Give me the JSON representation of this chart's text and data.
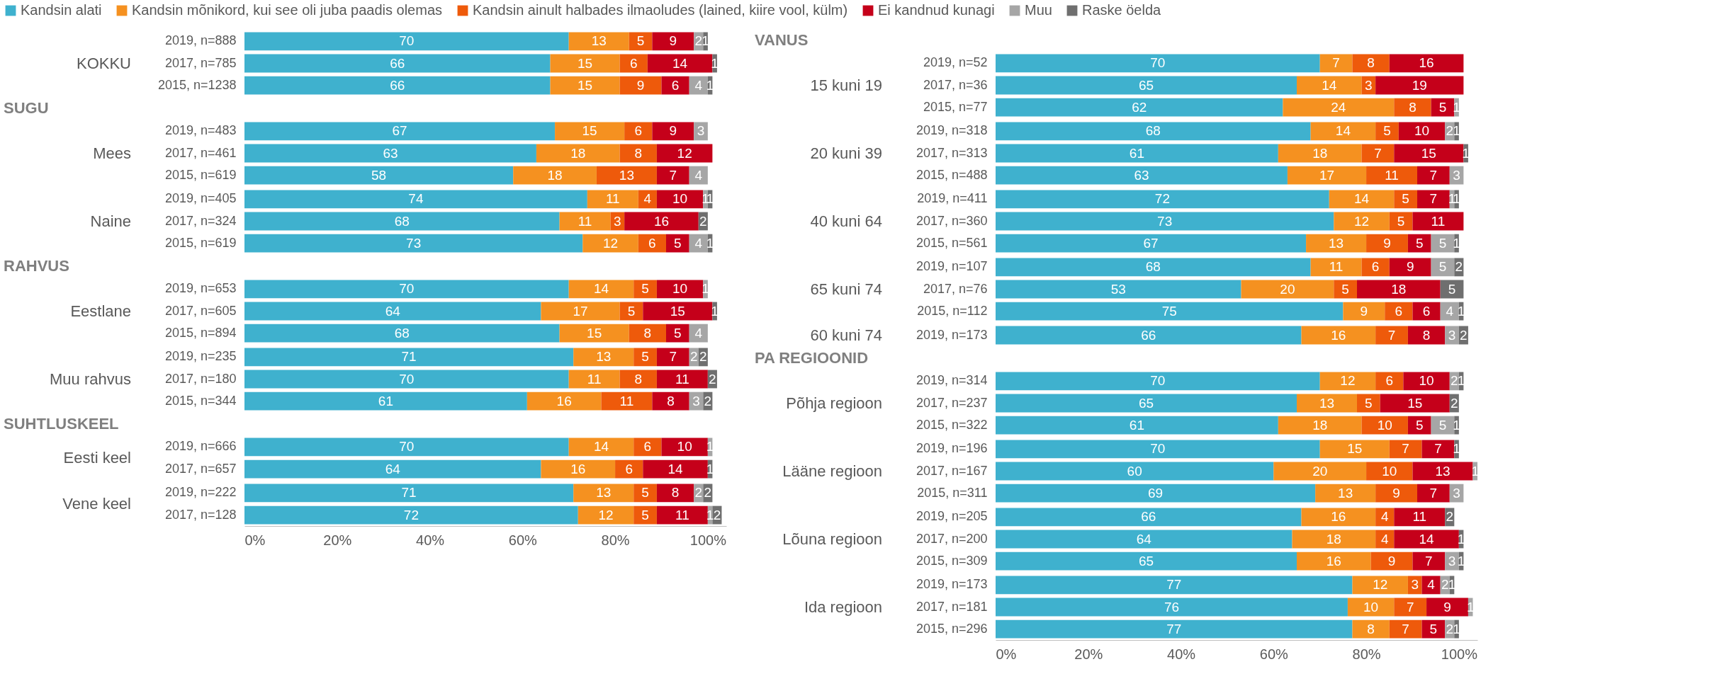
{
  "chart_data": [
    {
      "type": "bar",
      "orientation": "horizontal",
      "stacked": true,
      "data_labels": true,
      "legend": "top",
      "tick_labels": "y",
      "title": "KOKKU",
      "categories": [
        "2019, n=888",
        "2017, n=785",
        "2015, n=1238"
      ],
      "series": [
        {
          "name": "Kandsin alati",
          "color": "#3fb1ce",
          "values": [
            70,
            66,
            66
          ]
        },
        {
          "name": "Kandsin mõnikord, kui see oli juba paadis olemas",
          "color": "#f59120",
          "values": [
            13,
            15,
            15
          ]
        },
        {
          "name": "Kandsin ainult halbades ilmaoludes (lained, kiire vool, külm)",
          "color": "#ee5a0b",
          "values": [
            5,
            6,
            9
          ]
        },
        {
          "name": "Ei kandnud kunagi",
          "color": "#c5001a",
          "values": [
            9,
            14,
            6
          ]
        },
        {
          "name": "Muu",
          "color": "#a6a6a6",
          "values": [
            2,
            null,
            4
          ]
        },
        {
          "name": "Raske öelda",
          "color": "#6f6f6f",
          "values": [
            1,
            1,
            1
          ]
        }
      ]
    },
    {
      "type": "bar",
      "orientation": "horizontal",
      "stacked": true,
      "data_labels": true,
      "tick_labels": "y",
      "title": "Mees",
      "annotations": [
        "SUGU"
      ],
      "categories": [
        "2019, n=483",
        "2017, n=461",
        "2015, n=619"
      ],
      "series": [
        {
          "name": "Kandsin alati",
          "color": "#3fb1ce",
          "values": [
            67,
            63,
            58
          ]
        },
        {
          "name": "Kandsin mõnikord, kui see oli juba paadis olemas",
          "color": "#f59120",
          "values": [
            15,
            18,
            18
          ]
        },
        {
          "name": "Kandsin ainult halbades ilmaoludes (lained, kiire vool, külm)",
          "color": "#ee5a0b",
          "values": [
            6,
            8,
            13
          ]
        },
        {
          "name": "Ei kandnud kunagi",
          "color": "#c5001a",
          "values": [
            9,
            12,
            7
          ]
        },
        {
          "name": "Muu",
          "color": "#a6a6a6",
          "values": [
            3,
            null,
            4
          ]
        },
        {
          "name": "Raske öelda",
          "color": "#6f6f6f",
          "values": [
            null,
            null,
            null
          ]
        }
      ]
    },
    {
      "type": "bar",
      "orientation": "horizontal",
      "stacked": true,
      "data_labels": true,
      "tick_labels": "y",
      "title": "Naine",
      "categories": [
        "2019, n=405",
        "2017, n=324",
        "2015, n=619"
      ],
      "series": [
        {
          "name": "Kandsin alati",
          "color": "#3fb1ce",
          "values": [
            74,
            68,
            73
          ]
        },
        {
          "name": "Kandsin mõnikord, kui see oli juba paadis olemas",
          "color": "#f59120",
          "values": [
            11,
            11,
            12
          ]
        },
        {
          "name": "Kandsin ainult halbades ilmaoludes (lained, kiire vool, külm)",
          "color": "#ee5a0b",
          "values": [
            4,
            3,
            6
          ]
        },
        {
          "name": "Ei kandnud kunagi",
          "color": "#c5001a",
          "values": [
            10,
            16,
            5
          ]
        },
        {
          "name": "Muu",
          "color": "#a6a6a6",
          "values": [
            1,
            null,
            4
          ]
        },
        {
          "name": "Raske öelda",
          "color": "#6f6f6f",
          "values": [
            1,
            2,
            1
          ]
        }
      ]
    },
    {
      "type": "bar",
      "orientation": "horizontal",
      "stacked": true,
      "data_labels": true,
      "tick_labels": "y",
      "title": "Eestlane",
      "annotations": [
        "RAHVUS"
      ],
      "categories": [
        "2019, n=653",
        "2017, n=605",
        "2015, n=894"
      ],
      "series": [
        {
          "name": "Kandsin alati",
          "color": "#3fb1ce",
          "values": [
            70,
            64,
            68
          ]
        },
        {
          "name": "Kandsin mõnikord, kui see oli juba paadis olemas",
          "color": "#f59120",
          "values": [
            14,
            17,
            15
          ]
        },
        {
          "name": "Kandsin ainult halbades ilmaoludes (lained, kiire vool, külm)",
          "color": "#ee5a0b",
          "values": [
            5,
            5,
            8
          ]
        },
        {
          "name": "Ei kandnud kunagi",
          "color": "#c5001a",
          "values": [
            10,
            15,
            5
          ]
        },
        {
          "name": "Muu",
          "color": "#a6a6a6",
          "values": [
            1,
            null,
            4
          ]
        },
        {
          "name": "Raske öelda",
          "color": "#6f6f6f",
          "values": [
            null,
            1,
            null
          ]
        }
      ]
    },
    {
      "type": "bar",
      "orientation": "horizontal",
      "stacked": true,
      "data_labels": true,
      "tick_labels": "y",
      "title": "Muu rahvus",
      "categories": [
        "2019, n=235",
        "2017, n=180",
        "2015, n=344"
      ],
      "series": [
        {
          "name": "Kandsin alati",
          "color": "#3fb1ce",
          "values": [
            71,
            70,
            61
          ]
        },
        {
          "name": "Kandsin mõnikord, kui see oli juba paadis olemas",
          "color": "#f59120",
          "values": [
            13,
            11,
            16
          ]
        },
        {
          "name": "Kandsin ainult halbades ilmaoludes (lained, kiire vool, külm)",
          "color": "#ee5a0b",
          "values": [
            5,
            8,
            11
          ]
        },
        {
          "name": "Ei kandnud kunagi",
          "color": "#c5001a",
          "values": [
            7,
            11,
            8
          ]
        },
        {
          "name": "Muu",
          "color": "#a6a6a6",
          "values": [
            2,
            null,
            3
          ]
        },
        {
          "name": "Raske öelda",
          "color": "#6f6f6f",
          "values": [
            2,
            2,
            2
          ]
        }
      ]
    },
    {
      "type": "bar",
      "orientation": "horizontal",
      "stacked": true,
      "data_labels": true,
      "tick_labels": "y",
      "title": "Eesti keel",
      "annotations": [
        "SUHTLUSKEEL"
      ],
      "categories": [
        "2019, n=666",
        "2017, n=657"
      ],
      "series": [
        {
          "name": "Kandsin alati",
          "color": "#3fb1ce",
          "values": [
            70,
            64
          ]
        },
        {
          "name": "Kandsin mõnikord, kui see oli juba paadis olemas",
          "color": "#f59120",
          "values": [
            14,
            16
          ]
        },
        {
          "name": "Kandsin ainult halbades ilmaoludes (lained, kiire vool, külm)",
          "color": "#ee5a0b",
          "values": [
            6,
            6
          ]
        },
        {
          "name": "Ei kandnud kunagi",
          "color": "#c5001a",
          "values": [
            10,
            14
          ]
        },
        {
          "name": "Muu",
          "color": "#a6a6a6",
          "values": [
            1,
            null
          ]
        },
        {
          "name": "Raske öelda",
          "color": "#6f6f6f",
          "values": [
            null,
            1
          ]
        }
      ]
    },
    {
      "type": "bar",
      "orientation": "horizontal",
      "stacked": true,
      "data_labels": true,
      "xlim": [
        0,
        104
      ],
      "xticks": [
        {
          "value": 0,
          "label": "0%"
        },
        {
          "value": 20,
          "label": "20%"
        },
        {
          "value": 40,
          "label": "40%"
        },
        {
          "value": 60,
          "label": "60%"
        },
        {
          "value": 80,
          "label": "80%"
        },
        {
          "value": 100,
          "label": "100%"
        }
      ],
      "title": "Vene keel",
      "categories": [
        "2019, n=222",
        "2017, n=128"
      ],
      "series": [
        {
          "name": "Kandsin alati",
          "color": "#3fb1ce",
          "values": [
            71,
            72
          ]
        },
        {
          "name": "Kandsin mõnikord, kui see oli juba paadis olemas",
          "color": "#f59120",
          "values": [
            13,
            12
          ]
        },
        {
          "name": "Kandsin ainult halbades ilmaoludes (lained, kiire vool, külm)",
          "color": "#ee5a0b",
          "values": [
            5,
            5
          ]
        },
        {
          "name": "Ei kandnud kunagi",
          "color": "#c5001a",
          "values": [
            8,
            11
          ]
        },
        {
          "name": "Muu",
          "color": "#a6a6a6",
          "values": [
            2,
            1
          ]
        },
        {
          "name": "Raske öelda",
          "color": "#6f6f6f",
          "values": [
            2,
            2
          ]
        }
      ]
    },
    {
      "type": "bar",
      "orientation": "horizontal",
      "stacked": true,
      "data_labels": true,
      "tick_labels": "y",
      "title": "15 kuni 19",
      "annotations": [
        "VANUS"
      ],
      "categories": [
        "2019, n=52",
        "2017, n=36",
        "2015, n=77"
      ],
      "series": [
        {
          "name": "Kandsin alati",
          "color": "#3fb1ce",
          "values": [
            70,
            65,
            62
          ]
        },
        {
          "name": "Kandsin mõnikord, kui see oli juba paadis olemas",
          "color": "#f59120",
          "values": [
            7,
            14,
            24
          ]
        },
        {
          "name": "Kandsin ainult halbades ilmaoludes (lained, kiire vool, külm)",
          "color": "#ee5a0b",
          "values": [
            8,
            3,
            8
          ]
        },
        {
          "name": "Ei kandnud kunagi",
          "color": "#c5001a",
          "values": [
            16,
            19,
            5
          ]
        },
        {
          "name": "Muu",
          "color": "#a6a6a6",
          "values": [
            null,
            null,
            1
          ]
        },
        {
          "name": "Raske öelda",
          "color": "#6f6f6f",
          "values": [
            null,
            null,
            null
          ]
        }
      ]
    },
    {
      "type": "bar",
      "orientation": "horizontal",
      "stacked": true,
      "data_labels": true,
      "tick_labels": "y",
      "title": "20 kuni 39",
      "categories": [
        "2019, n=318",
        "2017, n=313",
        "2015, n=488"
      ],
      "series": [
        {
          "name": "Kandsin alati",
          "color": "#3fb1ce",
          "values": [
            68,
            61,
            63
          ]
        },
        {
          "name": "Kandsin mõnikord, kui see oli juba paadis olemas",
          "color": "#f59120",
          "values": [
            14,
            18,
            17
          ]
        },
        {
          "name": "Kandsin ainult halbades ilmaoludes (lained, kiire vool, külm)",
          "color": "#ee5a0b",
          "values": [
            5,
            7,
            11
          ]
        },
        {
          "name": "Ei kandnud kunagi",
          "color": "#c5001a",
          "values": [
            10,
            15,
            7
          ]
        },
        {
          "name": "Muu",
          "color": "#a6a6a6",
          "values": [
            2,
            null,
            3
          ]
        },
        {
          "name": "Raske öelda",
          "color": "#6f6f6f",
          "values": [
            1,
            1,
            null
          ]
        }
      ]
    },
    {
      "type": "bar",
      "orientation": "horizontal",
      "stacked": true,
      "data_labels": true,
      "tick_labels": "y",
      "title": "40 kuni 64",
      "categories": [
        "2019, n=411",
        "2017, n=360",
        "2015, n=561"
      ],
      "series": [
        {
          "name": "Kandsin alati",
          "color": "#3fb1ce",
          "values": [
            72,
            73,
            67
          ]
        },
        {
          "name": "Kandsin mõnikord, kui see oli juba paadis olemas",
          "color": "#f59120",
          "values": [
            14,
            12,
            13
          ]
        },
        {
          "name": "Kandsin ainult halbades ilmaoludes (lained, kiire vool, külm)",
          "color": "#ee5a0b",
          "values": [
            5,
            5,
            9
          ]
        },
        {
          "name": "Ei kandnud kunagi",
          "color": "#c5001a",
          "values": [
            7,
            11,
            5
          ]
        },
        {
          "name": "Muu",
          "color": "#a6a6a6",
          "values": [
            1,
            null,
            5
          ]
        },
        {
          "name": "Raske öelda",
          "color": "#6f6f6f",
          "values": [
            1,
            null,
            1
          ]
        }
      ]
    },
    {
      "type": "bar",
      "orientation": "horizontal",
      "stacked": true,
      "data_labels": true,
      "tick_labels": "y",
      "title": "65 kuni 74",
      "categories": [
        "2019, n=107",
        "2017, n=76",
        "2015, n=112"
      ],
      "series": [
        {
          "name": "Kandsin alati",
          "color": "#3fb1ce",
          "values": [
            68,
            53,
            75
          ]
        },
        {
          "name": "Kandsin mõnikord, kui see oli juba paadis olemas",
          "color": "#f59120",
          "values": [
            11,
            20,
            9
          ]
        },
        {
          "name": "Kandsin ainult halbades ilmaoludes (lained, kiire vool, külm)",
          "color": "#ee5a0b",
          "values": [
            6,
            5,
            6
          ]
        },
        {
          "name": "Ei kandnud kunagi",
          "color": "#c5001a",
          "values": [
            9,
            18,
            6
          ]
        },
        {
          "name": "Muu",
          "color": "#a6a6a6",
          "values": [
            5,
            null,
            4
          ]
        },
        {
          "name": "Raske öelda",
          "color": "#6f6f6f",
          "values": [
            2,
            5,
            1
          ]
        }
      ]
    },
    {
      "type": "bar",
      "orientation": "horizontal",
      "stacked": true,
      "data_labels": true,
      "tick_labels": "y",
      "title": "60 kuni 74",
      "categories": [
        "2019, n=173"
      ],
      "series": [
        {
          "name": "Kandsin alati",
          "color": "#3fb1ce",
          "values": [
            66
          ]
        },
        {
          "name": "Kandsin mõnikord, kui see oli juba paadis olemas",
          "color": "#f59120",
          "values": [
            16
          ]
        },
        {
          "name": "Kandsin ainult halbades ilmaoludes (lained, kiire vool, külm)",
          "color": "#ee5a0b",
          "values": [
            7
          ]
        },
        {
          "name": "Ei kandnud kunagi",
          "color": "#c5001a",
          "values": [
            8
          ]
        },
        {
          "name": "Muu",
          "color": "#a6a6a6",
          "values": [
            3
          ]
        },
        {
          "name": "Raske öelda",
          "color": "#6f6f6f",
          "values": [
            2
          ]
        }
      ]
    },
    {
      "type": "bar",
      "orientation": "horizontal",
      "stacked": true,
      "data_labels": true,
      "tick_labels": "y",
      "title": "Põhja regioon",
      "annotations": [
        "PA REGIOONID"
      ],
      "categories": [
        "2019, n=314",
        "2017, n=237",
        "2015, n=322"
      ],
      "series": [
        {
          "name": "Kandsin alati",
          "color": "#3fb1ce",
          "values": [
            70,
            65,
            61
          ]
        },
        {
          "name": "Kandsin mõnikord, kui see oli juba paadis olemas",
          "color": "#f59120",
          "values": [
            12,
            13,
            18
          ]
        },
        {
          "name": "Kandsin ainult halbades ilmaoludes (lained, kiire vool, külm)",
          "color": "#ee5a0b",
          "values": [
            6,
            5,
            10
          ]
        },
        {
          "name": "Ei kandnud kunagi",
          "color": "#c5001a",
          "values": [
            10,
            15,
            5
          ]
        },
        {
          "name": "Muu",
          "color": "#a6a6a6",
          "values": [
            2,
            null,
            5
          ]
        },
        {
          "name": "Raske öelda",
          "color": "#6f6f6f",
          "values": [
            1,
            2,
            1
          ]
        }
      ]
    },
    {
      "type": "bar",
      "orientation": "horizontal",
      "stacked": true,
      "data_labels": true,
      "tick_labels": "y",
      "title": "Lääne regioon",
      "categories": [
        "2019, n=196",
        "2017, n=167",
        "2015, n=311"
      ],
      "series": [
        {
          "name": "Kandsin alati",
          "color": "#3fb1ce",
          "values": [
            70,
            60,
            69
          ]
        },
        {
          "name": "Kandsin mõnikord, kui see oli juba paadis olemas",
          "color": "#f59120",
          "values": [
            15,
            20,
            13
          ]
        },
        {
          "name": "Kandsin ainult halbades ilmaoludes (lained, kiire vool, külm)",
          "color": "#ee5a0b",
          "values": [
            7,
            10,
            9
          ]
        },
        {
          "name": "Ei kandnud kunagi",
          "color": "#c5001a",
          "values": [
            7,
            13,
            7
          ]
        },
        {
          "name": "Muu",
          "color": "#a6a6a6",
          "values": [
            null,
            1,
            3
          ]
        },
        {
          "name": "Raske öelda",
          "color": "#6f6f6f",
          "values": [
            1,
            null,
            null
          ]
        }
      ]
    },
    {
      "type": "bar",
      "orientation": "horizontal",
      "stacked": true,
      "data_labels": true,
      "tick_labels": "y",
      "title": "Lõuna regioon",
      "categories": [
        "2019, n=205",
        "2017, n=200",
        "2015, n=309"
      ],
      "series": [
        {
          "name": "Kandsin alati",
          "color": "#3fb1ce",
          "values": [
            66,
            64,
            65
          ]
        },
        {
          "name": "Kandsin mõnikord, kui see oli juba paadis olemas",
          "color": "#f59120",
          "values": [
            16,
            18,
            16
          ]
        },
        {
          "name": "Kandsin ainult halbades ilmaoludes (lained, kiire vool, külm)",
          "color": "#ee5a0b",
          "values": [
            4,
            4,
            9
          ]
        },
        {
          "name": "Ei kandnud kunagi",
          "color": "#c5001a",
          "values": [
            11,
            14,
            7
          ]
        },
        {
          "name": "Muu",
          "color": "#a6a6a6",
          "values": [
            null,
            null,
            3
          ]
        },
        {
          "name": "Raske öelda",
          "color": "#6f6f6f",
          "values": [
            2,
            1,
            1
          ]
        }
      ]
    },
    {
      "type": "bar",
      "orientation": "horizontal",
      "stacked": true,
      "data_labels": true,
      "xlim": [
        0,
        104
      ],
      "xticks": [
        {
          "value": 0,
          "label": "0%"
        },
        {
          "value": 20,
          "label": "20%"
        },
        {
          "value": 40,
          "label": "40%"
        },
        {
          "value": 60,
          "label": "60%"
        },
        {
          "value": 80,
          "label": "80%"
        },
        {
          "value": 100,
          "label": "100%"
        }
      ],
      "title": "Ida regioon",
      "categories": [
        "2019, n=173",
        "2017, n=181",
        "2015, n=296"
      ],
      "series": [
        {
          "name": "Kandsin alati",
          "color": "#3fb1ce",
          "values": [
            77,
            76,
            77
          ]
        },
        {
          "name": "Kandsin mõnikord, kui see oli juba paadis olemas",
          "color": "#f59120",
          "values": [
            12,
            10,
            8
          ]
        },
        {
          "name": "Kandsin ainult halbades ilmaoludes (lained, kiire vool, külm)",
          "color": "#ee5a0b",
          "values": [
            3,
            7,
            7
          ]
        },
        {
          "name": "Ei kandnud kunagi",
          "color": "#c5001a",
          "values": [
            4,
            9,
            5
          ]
        },
        {
          "name": "Muu",
          "color": "#a6a6a6",
          "values": [
            2,
            1,
            2
          ]
        },
        {
          "name": "Raske öelda",
          "color": "#6f6f6f",
          "values": [
            1,
            null,
            1
          ]
        }
      ]
    }
  ]
}
